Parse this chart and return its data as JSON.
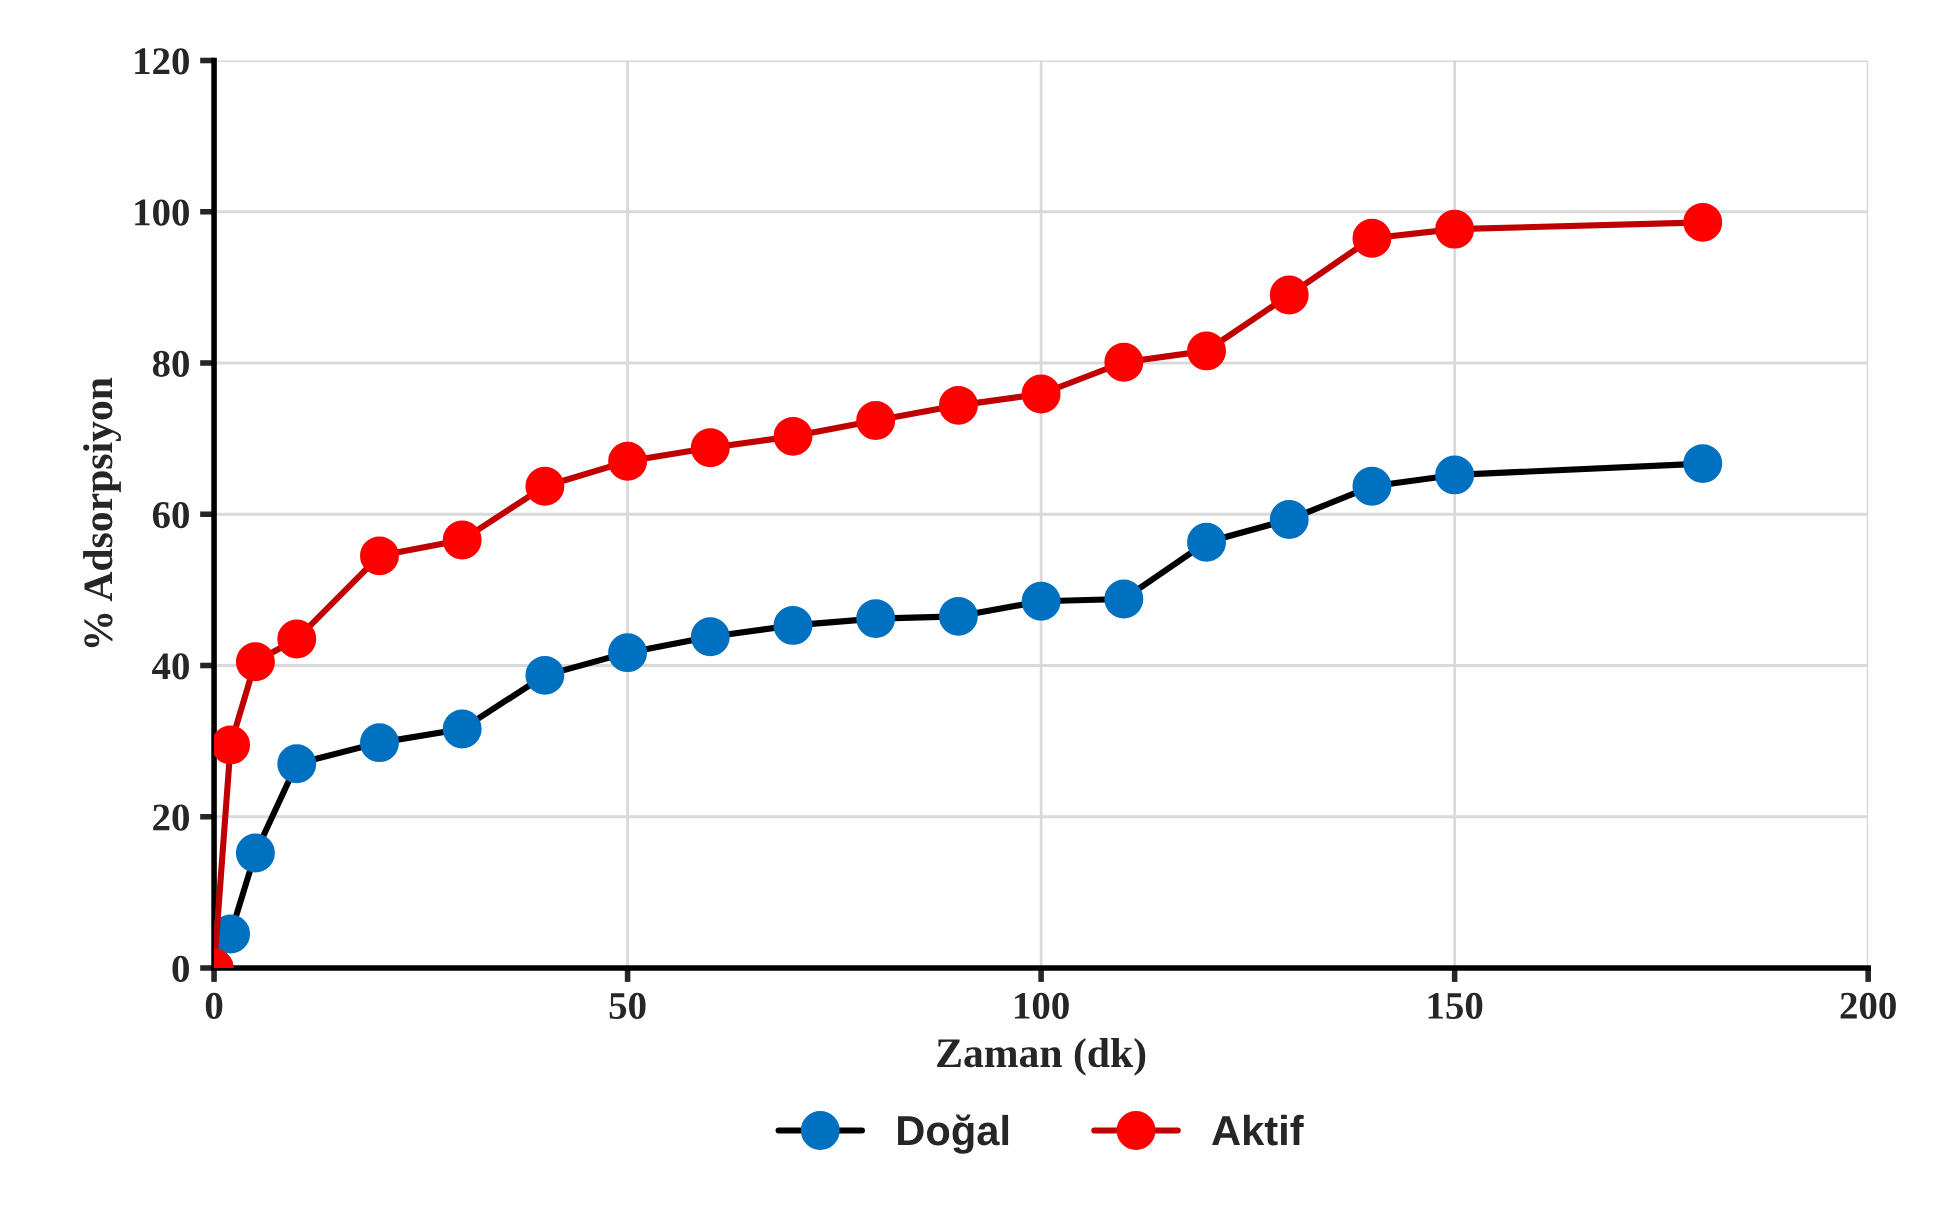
{
  "chart_data": {
    "type": "line",
    "xlabel": "Zaman (dk)",
    "ylabel": "% Adsorpsiyon",
    "xlim": [
      0,
      200
    ],
    "xticks": [
      0,
      50,
      100,
      150,
      200
    ],
    "ylim": [
      0,
      120
    ],
    "yticks": [
      0,
      20,
      40,
      60,
      80,
      100,
      120
    ],
    "grid": true,
    "legend": "bottom",
    "marker": "circle",
    "line_style": "solid",
    "series": [
      {
        "name": "Doğal",
        "color": "#0070c0",
        "x": [
          0,
          2,
          5,
          10,
          20,
          30,
          40,
          50,
          60,
          70,
          80,
          90,
          100,
          110,
          120,
          130,
          140,
          150,
          180
        ],
        "values": [
          0,
          4.5,
          15.2,
          27,
          29.8,
          31.6,
          38.7,
          41.7,
          43.8,
          45.3,
          46.2,
          46.5,
          48.5,
          48.8,
          56.3,
          59.3,
          63.7,
          65.2,
          66.7
        ]
      },
      {
        "name": "Aktif",
        "color": "#ff0000",
        "x": [
          0,
          2,
          5,
          10,
          20,
          30,
          40,
          50,
          60,
          70,
          80,
          90,
          100,
          110,
          120,
          130,
          140,
          150,
          180
        ],
        "values": [
          0,
          29.5,
          40.5,
          43.5,
          54.5,
          56.6,
          63.7,
          67,
          68.8,
          70.3,
          72.4,
          74.4,
          75.9,
          80.1,
          81.6,
          89,
          96.5,
          97.7,
          98.6
        ]
      }
    ]
  }
}
